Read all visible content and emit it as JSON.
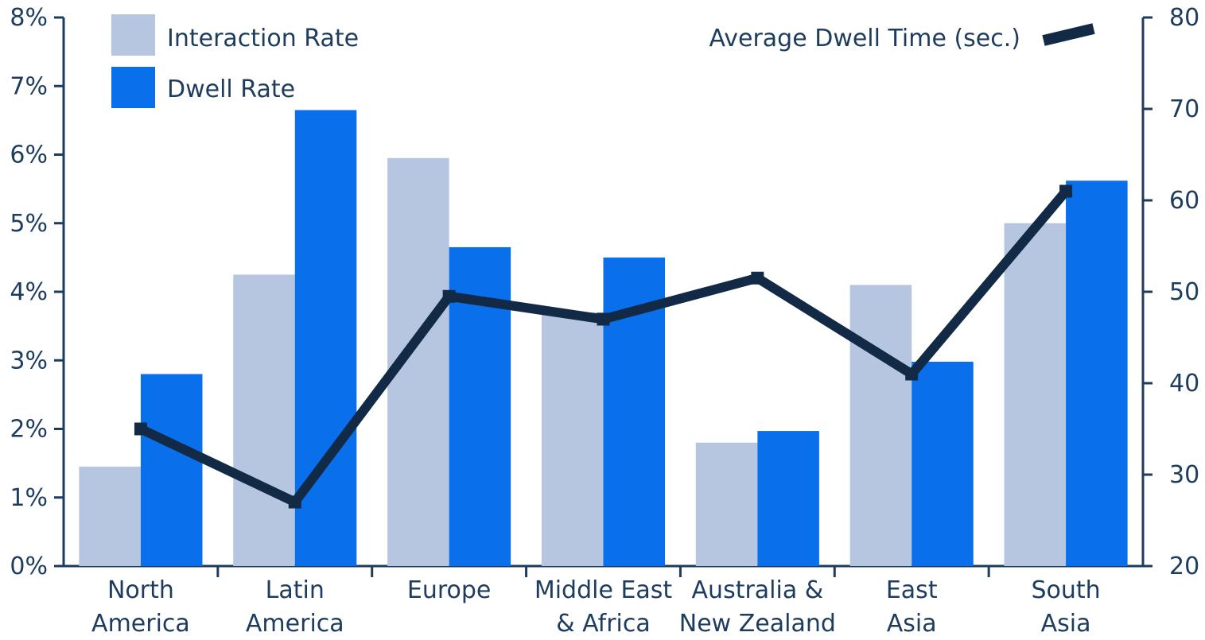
{
  "chart_data": {
    "type": "bar",
    "categories": [
      [
        "North",
        "America"
      ],
      [
        "Latin",
        "America"
      ],
      [
        "Europe"
      ],
      [
        "Middle East",
        "& Africa"
      ],
      [
        "Australia &",
        "New Zealand"
      ],
      [
        "East",
        "Asia"
      ],
      [
        "South",
        "Asia"
      ]
    ],
    "series": [
      {
        "name": "Interaction Rate",
        "axis": "left",
        "kind": "bar",
        "color": "#b7c6e0",
        "values": [
          1.45,
          4.25,
          5.95,
          3.7,
          1.8,
          4.1,
          5.0
        ]
      },
      {
        "name": "Dwell Rate",
        "axis": "left",
        "kind": "bar",
        "color": "#0a6fea",
        "values": [
          2.8,
          6.65,
          4.65,
          4.5,
          1.97,
          2.98,
          5.62
        ]
      },
      {
        "name": "Average Dwell Time (sec.)",
        "axis": "right",
        "kind": "line",
        "color": "#122a45",
        "values": [
          35,
          27,
          49.5,
          47,
          51.5,
          41,
          61
        ]
      }
    ],
    "left_axis": {
      "min": 0,
      "max": 8,
      "ticks": [
        0,
        1,
        2,
        3,
        4,
        5,
        6,
        7,
        8
      ],
      "tick_labels": [
        "0%",
        "1%",
        "2%",
        "3%",
        "4%",
        "5%",
        "6%",
        "7%",
        "8%"
      ]
    },
    "right_axis": {
      "min": 20,
      "max": 80,
      "ticks": [
        20,
        30,
        40,
        50,
        60,
        70,
        80
      ],
      "tick_labels": [
        "20",
        "30",
        "40",
        "50",
        "60",
        "70",
        "80"
      ]
    },
    "legend": {
      "bars_position": "top-left",
      "line_position": "top-right"
    },
    "grid": false,
    "title": "",
    "xlabel": "",
    "ylabel": ""
  }
}
